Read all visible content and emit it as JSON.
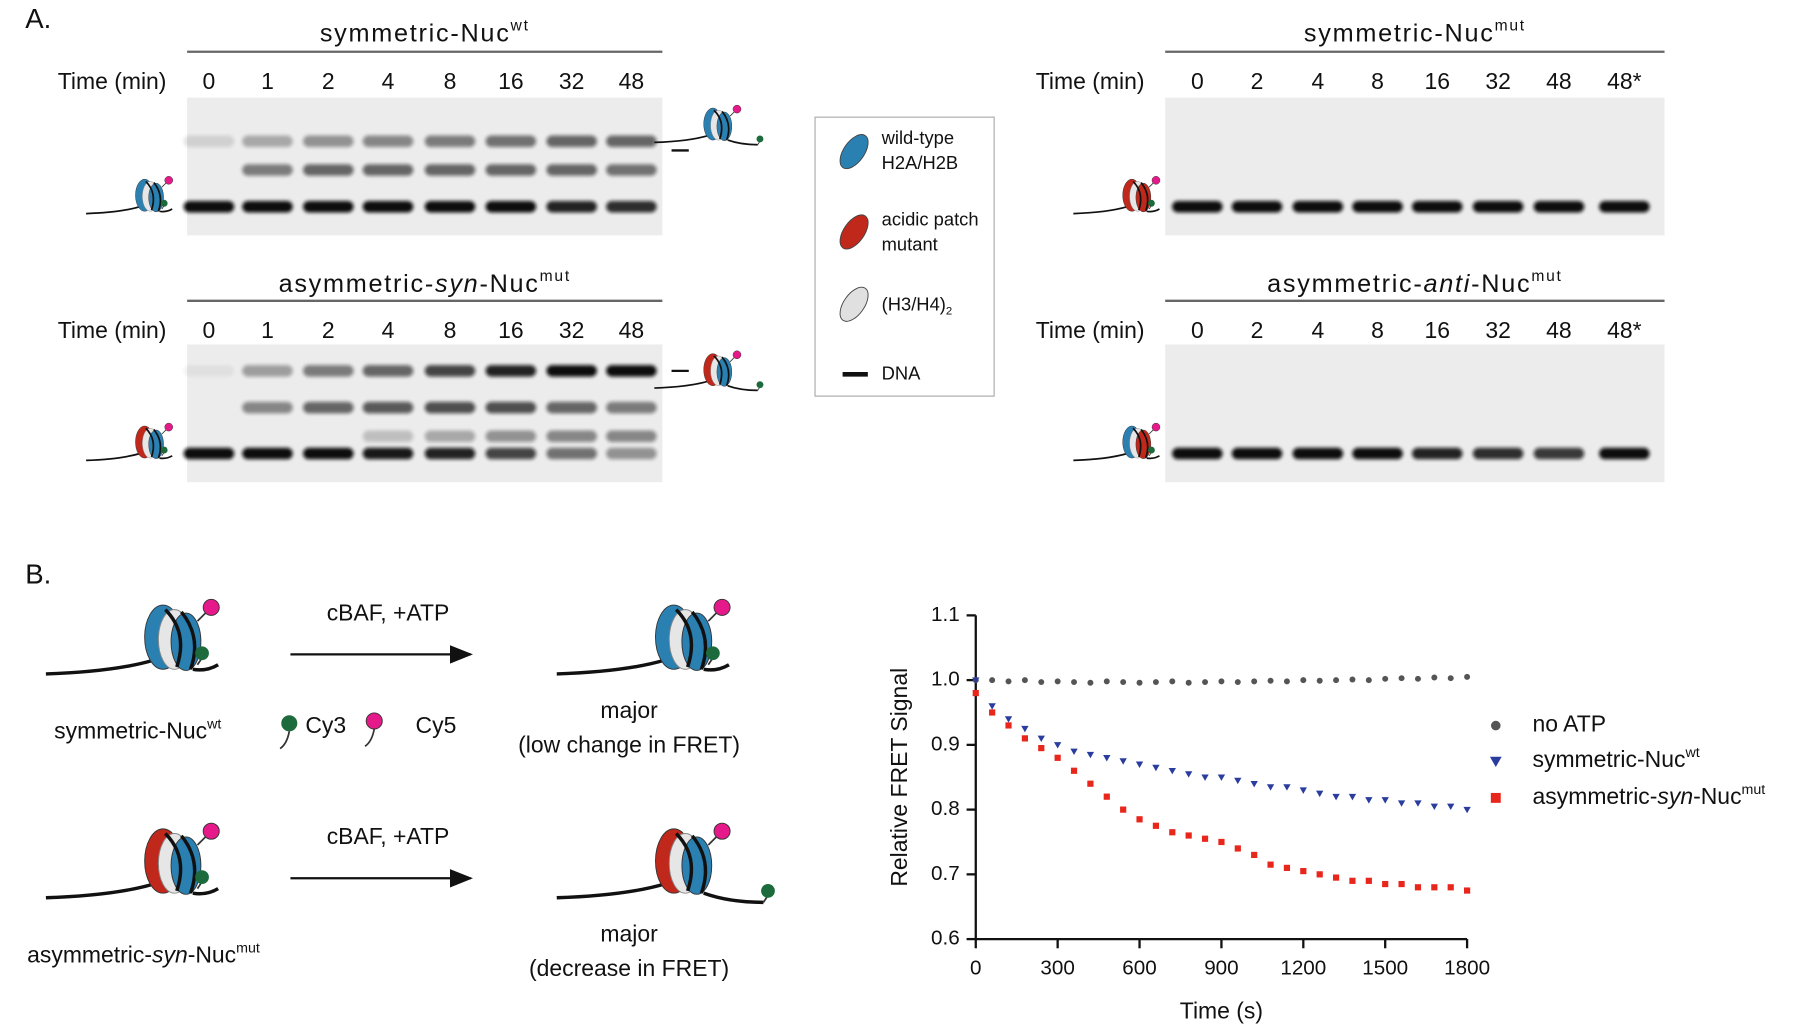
{
  "panel_a": {
    "label": "A.",
    "gels": [
      {
        "title": {
          "text": "symmetric-Nuc",
          "sup": "wt"
        },
        "time_label": "Time (min)",
        "lanes": [
          0,
          1,
          2,
          4,
          8,
          16,
          32,
          48
        ]
      },
      {
        "title": {
          "pre": "asymmetric-",
          "italic": "syn",
          "post": "-Nuc",
          "sup": "mut"
        },
        "time_label": "Time (min)",
        "lanes": [
          0,
          1,
          2,
          4,
          8,
          16,
          32,
          48
        ]
      },
      {
        "title": {
          "text": "symmetric-Nuc",
          "sup": "mut"
        },
        "time_label": "Time (min)",
        "lanes": [
          0,
          2,
          4,
          8,
          16,
          32,
          48,
          "48*"
        ]
      },
      {
        "title": {
          "pre": "asymmetric-",
          "italic": "anti",
          "post": "-Nuc",
          "sup": "mut"
        },
        "time_label": "Time (min)",
        "lanes": [
          0,
          2,
          4,
          8,
          16,
          32,
          48,
          "48*"
        ]
      }
    ],
    "legend": [
      {
        "lines": [
          "wild-type",
          "H2A/H2B"
        ]
      },
      {
        "lines": [
          "acidic patch",
          "mutant"
        ]
      },
      {
        "text": "(H3/H4)",
        "sub": "2"
      },
      {
        "text": "DNA"
      }
    ]
  },
  "panel_b": {
    "label": "B.",
    "dyes": [
      "Cy3",
      "Cy5"
    ],
    "rows": [
      {
        "arrow_label": "cBAF, +ATP",
        "name": {
          "text": "symmetric-Nuc",
          "sup": "wt"
        },
        "outcome": [
          "major",
          "(low change in FRET)"
        ]
      },
      {
        "arrow_label": "cBAF, +ATP",
        "name": {
          "pre": "asymmetric-",
          "italic": "syn",
          "post": "-Nuc",
          "sup": "mut"
        },
        "outcome": [
          "major",
          "(decrease in FRET)"
        ]
      }
    ]
  },
  "chart_data": {
    "type": "scatter",
    "x_label": "Time (s)",
    "y_label": "Relative FRET Signal",
    "xlim": [
      0,
      1800
    ],
    "xticks": [
      0,
      300,
      600,
      900,
      1200,
      1500,
      1800
    ],
    "ylim": [
      0.6,
      1.1
    ],
    "yticks": [
      0.6,
      0.7,
      0.8,
      0.9,
      {
        "value": 1,
        "label": "1.0"
      },
      1.1
    ],
    "x": [
      0,
      60,
      120,
      180,
      240,
      300,
      360,
      420,
      480,
      540,
      600,
      660,
      720,
      780,
      840,
      900,
      960,
      1020,
      1080,
      1140,
      1200,
      1260,
      1320,
      1380,
      1440,
      1500,
      1560,
      1620,
      1680,
      1740,
      1800
    ],
    "series": [
      {
        "name": {
          "text": "no ATP"
        },
        "color": "#555555",
        "values": [
          1.0,
          1.0,
          0.998,
          1.0,
          0.997,
          0.998,
          0.997,
          0.996,
          0.998,
          0.997,
          0.996,
          0.997,
          0.998,
          0.996,
          0.997,
          0.998,
          0.997,
          0.998,
          0.999,
          0.998,
          1.0,
          0.999,
          1.0,
          1.001,
          1.0,
          1.002,
          1.003,
          1.002,
          1.004,
          1.003,
          1.005
        ]
      },
      {
        "name": {
          "text": "symmetric-Nuc",
          "sup": "wt"
        },
        "color": "#2a3d9e",
        "values": [
          1.0,
          0.96,
          0.94,
          0.925,
          0.91,
          0.9,
          0.89,
          0.885,
          0.88,
          0.875,
          0.87,
          0.865,
          0.86,
          0.855,
          0.85,
          0.85,
          0.845,
          0.84,
          0.835,
          0.835,
          0.83,
          0.825,
          0.82,
          0.82,
          0.815,
          0.815,
          0.81,
          0.81,
          0.805,
          0.805,
          0.8
        ]
      },
      {
        "name": {
          "pre": "asymmetric-",
          "italic": "syn",
          "post": "-Nuc",
          "sup": "mut"
        },
        "color": "#e8261c",
        "values": [
          0.98,
          0.95,
          0.93,
          0.91,
          0.895,
          0.88,
          0.86,
          0.84,
          0.82,
          0.8,
          0.785,
          0.775,
          0.765,
          0.76,
          0.755,
          0.75,
          0.74,
          0.73,
          0.715,
          0.71,
          0.705,
          0.7,
          0.695,
          0.69,
          0.69,
          0.685,
          0.685,
          0.68,
          0.68,
          0.68,
          0.675
        ]
      }
    ]
  }
}
